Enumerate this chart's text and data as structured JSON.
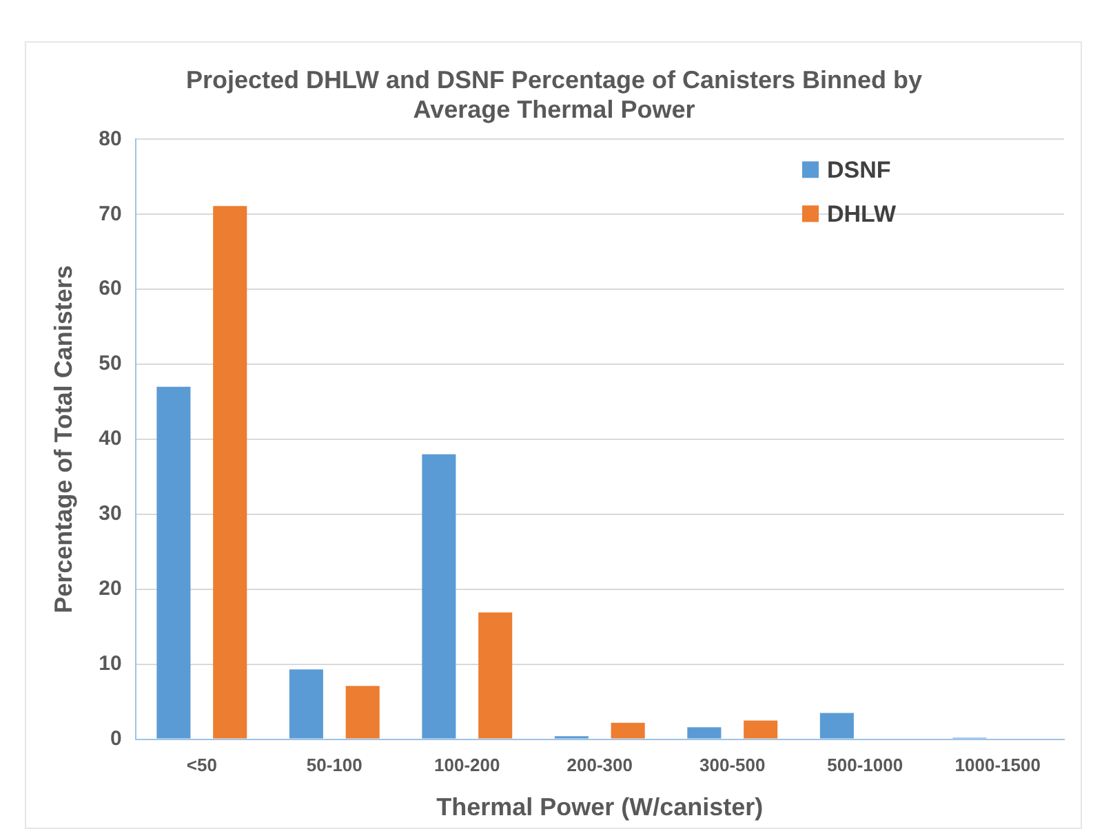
{
  "chart_data": {
    "type": "bar",
    "title": [
      "Projected DHLW and DSNF Percentage of Canisters Binned by",
      "Average Thermal Power"
    ],
    "xlabel": "Thermal Power (W/canister)",
    "ylabel": "Percentage of Total Canisters",
    "categories": [
      "<50",
      "50-100",
      "100-200",
      "200-300",
      "300-500",
      "500-1000",
      "1000-1500"
    ],
    "series": [
      {
        "name": "DSNF",
        "color": "#5b9bd5",
        "values": [
          47,
          9.3,
          38,
          0.4,
          1.6,
          3.5,
          0.2
        ]
      },
      {
        "name": "DHLW",
        "color": "#ed7d31",
        "values": [
          71.1,
          7.1,
          16.9,
          2.2,
          2.5,
          0,
          0
        ]
      }
    ],
    "ylim": [
      0,
      80
    ],
    "yticks": [
      0,
      10,
      20,
      30,
      40,
      50,
      60,
      70,
      80
    ],
    "grid": "y",
    "legend": "top right"
  }
}
